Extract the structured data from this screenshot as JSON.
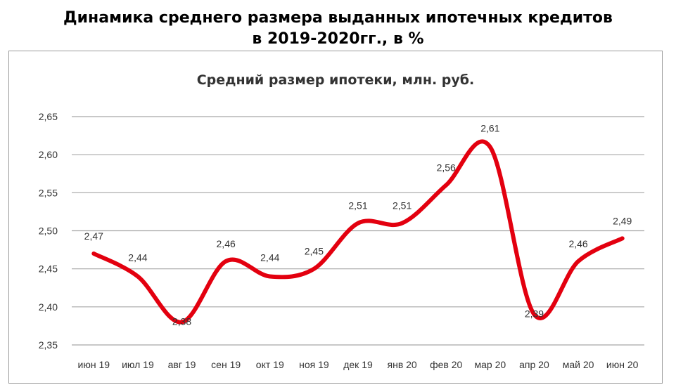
{
  "header": {
    "title_line1": "Динамика среднего размера выданных ипотечных кредитов",
    "title_line2": "в 2019-2020гг., в %"
  },
  "chart_data": {
    "type": "line",
    "title": "Средний размер ипотеки,  млн. руб.",
    "categories": [
      "июн 19",
      "июл 19",
      "авг 19",
      "сен 19",
      "окт 19",
      "ноя 19",
      "дек 19",
      "янв 20",
      "фев 20",
      "мар 20",
      "апр 20",
      "май 20",
      "июн 20"
    ],
    "series": [
      {
        "values": [
          2.47,
          2.44,
          2.38,
          2.46,
          2.44,
          2.45,
          2.51,
          2.51,
          2.56,
          2.61,
          2.39,
          2.46,
          2.49
        ],
        "labels": [
          "2,47",
          "2,44",
          "2,38",
          "2,46",
          "2,44",
          "2,45",
          "2,51",
          "2,51",
          "2,56",
          "2,61",
          "2,39",
          "2,46",
          "2,49"
        ],
        "color": "#e3000f"
      }
    ],
    "ylim": [
      2.35,
      2.65
    ],
    "yticks": [
      2.35,
      2.4,
      2.45,
      2.5,
      2.55,
      2.6,
      2.65
    ],
    "ytick_labels": [
      "2,35",
      "2,40",
      "2,45",
      "2,50",
      "2,55",
      "2,60",
      "2,65"
    ],
    "grid": true,
    "legend": "none",
    "xlabel": "",
    "ylabel": ""
  }
}
